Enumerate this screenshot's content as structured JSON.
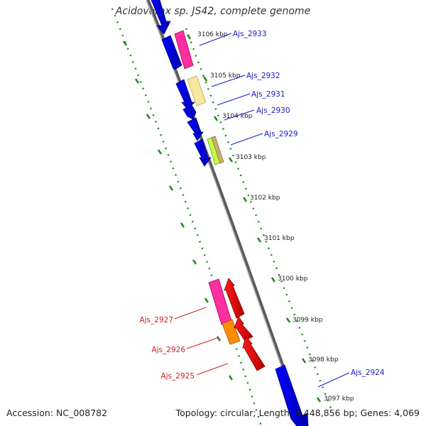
{
  "title": "Acidovorax sp. JS42, complete genome",
  "footer": {
    "accession": "Accession: NC_008782",
    "summary": "Topology: circular; Length: 4,448,856 bp; Genes: 4,069"
  },
  "colors": {
    "backbone": "#888888",
    "ticks": "#1f8a1f",
    "forward_label": "#1a1acc",
    "reverse_label": "#d21f1f"
  },
  "ticks": [
    {
      "label": "3106 kbp"
    },
    {
      "label": "3105 kbp"
    },
    {
      "label": "3104 kbp"
    },
    {
      "label": "3103 kbp"
    },
    {
      "label": "3102 kbp"
    },
    {
      "label": "3101 kbp"
    },
    {
      "label": "3100 kbp"
    },
    {
      "label": "3099 kbp"
    },
    {
      "label": "3098 kbp"
    },
    {
      "label": "3097 kbp"
    }
  ],
  "gene_labels": [
    {
      "label": "Ajs_2933",
      "strand": "forward"
    },
    {
      "label": "Ajs_2932",
      "strand": "forward"
    },
    {
      "label": "Ajs_2931",
      "strand": "forward"
    },
    {
      "label": "Ajs_2930",
      "strand": "forward"
    },
    {
      "label": "Ajs_2929",
      "strand": "forward"
    },
    {
      "label": "Ajs_2927",
      "strand": "reverse"
    },
    {
      "label": "Ajs_2926",
      "strand": "reverse"
    },
    {
      "label": "Ajs_2925",
      "strand": "reverse"
    },
    {
      "label": "Ajs_2924",
      "strand": "forward"
    }
  ]
}
